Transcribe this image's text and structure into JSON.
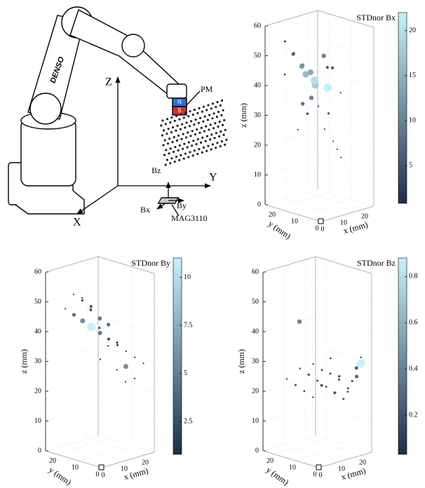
{
  "diagram": {
    "brand": "DENSO",
    "axes": {
      "z": "Z",
      "y": "Y",
      "x": "X"
    },
    "magnet": {
      "label": "PM",
      "north": "N",
      "south": "S"
    },
    "sensor": {
      "label": "MAG3110",
      "bz": "Bz",
      "by": "By",
      "bx": "Bx"
    }
  },
  "chart_data": [
    {
      "type": "scatter3d",
      "title": "STDnor Bx",
      "xlabel": "x (mm)",
      "ylabel": "y (mm)",
      "zlabel": "z (mm)",
      "xlim": [
        0,
        25
      ],
      "ylim": [
        0,
        25
      ],
      "zlim": [
        0,
        60
      ],
      "xticks": [
        0,
        10,
        20
      ],
      "yticks": [
        0,
        10,
        20
      ],
      "zticks": [
        0,
        10,
        20,
        30,
        40,
        50,
        60
      ],
      "clim": [
        0.8,
        22
      ],
      "cticks": [
        5,
        10,
        15,
        20
      ],
      "colormap": [
        "#1f2d48",
        "#c6f1fb"
      ],
      "x": [
        2,
        4,
        8,
        6,
        10,
        12,
        14,
        10,
        16,
        18,
        6,
        4,
        2,
        12,
        14,
        16,
        20,
        8,
        10,
        14,
        18,
        6,
        20,
        22,
        4
      ],
      "y": [
        18,
        16,
        20,
        14,
        18,
        16,
        20,
        12,
        18,
        14,
        10,
        12,
        8,
        8,
        12,
        10,
        16,
        6,
        4,
        6,
        8,
        16,
        20,
        12,
        20
      ],
      "z": [
        56,
        52,
        50,
        48,
        46,
        44,
        42,
        41,
        40,
        38,
        38,
        36,
        34,
        32,
        50,
        46,
        44,
        28,
        24,
        20,
        16,
        26,
        30,
        36,
        44
      ],
      "values": [
        3,
        5,
        7,
        9,
        12,
        14,
        16,
        18,
        20,
        22,
        10,
        8,
        4,
        3,
        10,
        6,
        5,
        1,
        1,
        1,
        1,
        1,
        1,
        1,
        2
      ]
    },
    {
      "type": "scatter3d",
      "title": "STDnor By",
      "xlabel": "x (mm)",
      "ylabel": "y (mm)",
      "zlabel": "z (mm)",
      "xlim": [
        0,
        25
      ],
      "ylim": [
        0,
        25
      ],
      "zlim": [
        0,
        60
      ],
      "xticks": [
        0,
        10,
        20
      ],
      "yticks": [
        0,
        10,
        20
      ],
      "zticks": [
        0,
        10,
        20,
        30,
        40,
        50,
        60
      ],
      "clim": [
        0.8,
        11
      ],
      "cticks": [
        2.5,
        5,
        7.5,
        10
      ],
      "colormap": [
        "#1f2d48",
        "#c6f1fb"
      ],
      "x": [
        4,
        6,
        8,
        10,
        12,
        14,
        16,
        18,
        20,
        22,
        8,
        10,
        12,
        14,
        16,
        18,
        20,
        22,
        12,
        14,
        16,
        18,
        20,
        22,
        10
      ],
      "y": [
        20,
        18,
        16,
        14,
        12,
        10,
        8,
        6,
        4,
        2,
        20,
        18,
        16,
        14,
        12,
        10,
        8,
        6,
        20,
        18,
        16,
        14,
        12,
        10,
        10
      ],
      "z": [
        48,
        46,
        44,
        42,
        40,
        38,
        36,
        34,
        32,
        30,
        52,
        50,
        48,
        44,
        42,
        36,
        28,
        24,
        50,
        46,
        40,
        34,
        26,
        22,
        32
      ],
      "values": [
        1,
        4,
        6,
        11,
        5,
        3,
        2,
        1,
        1,
        1,
        1,
        2,
        3,
        5,
        4,
        2,
        6,
        1,
        1,
        3,
        2,
        1,
        1,
        1,
        1
      ]
    },
    {
      "type": "scatter3d",
      "title": "STDnor Bz",
      "xlabel": "x (mm)",
      "ylabel": "y (mm)",
      "zlabel": "z (mm)",
      "xlim": [
        0,
        25
      ],
      "ylim": [
        0,
        25
      ],
      "zlim": [
        0,
        60
      ],
      "xticks": [
        0,
        10,
        20
      ],
      "yticks": [
        0,
        10,
        20
      ],
      "zticks": [
        0,
        10,
        20,
        30,
        40,
        50,
        60
      ],
      "clim": [
        0.03,
        0.88
      ],
      "cticks": [
        0.2,
        0.4,
        0.6,
        0.8
      ],
      "colormap": [
        "#1f2d48",
        "#c6f1fb"
      ],
      "x": [
        6,
        8,
        10,
        12,
        14,
        16,
        18,
        20,
        22,
        8,
        10,
        12,
        14,
        16,
        18,
        20,
        22,
        10,
        12,
        14,
        16,
        18,
        20,
        22,
        12
      ],
      "y": [
        20,
        18,
        16,
        14,
        12,
        10,
        8,
        6,
        4,
        16,
        14,
        12,
        10,
        8,
        6,
        4,
        2,
        12,
        10,
        8,
        6,
        4,
        2,
        2,
        20
      ],
      "z": [
        24,
        22,
        20,
        18,
        22,
        26,
        24,
        20,
        28,
        28,
        26,
        24,
        22,
        20,
        18,
        24,
        30,
        30,
        28,
        32,
        26,
        22,
        26,
        32,
        42
      ],
      "values": [
        0.05,
        0.1,
        0.08,
        0.06,
        0.2,
        0.1,
        0.12,
        0.08,
        0.3,
        0.06,
        0.15,
        0.1,
        0.08,
        0.2,
        0.1,
        0.12,
        0.88,
        0.05,
        0.1,
        0.08,
        0.15,
        0.1,
        0.3,
        0.06,
        0.4
      ]
    }
  ]
}
